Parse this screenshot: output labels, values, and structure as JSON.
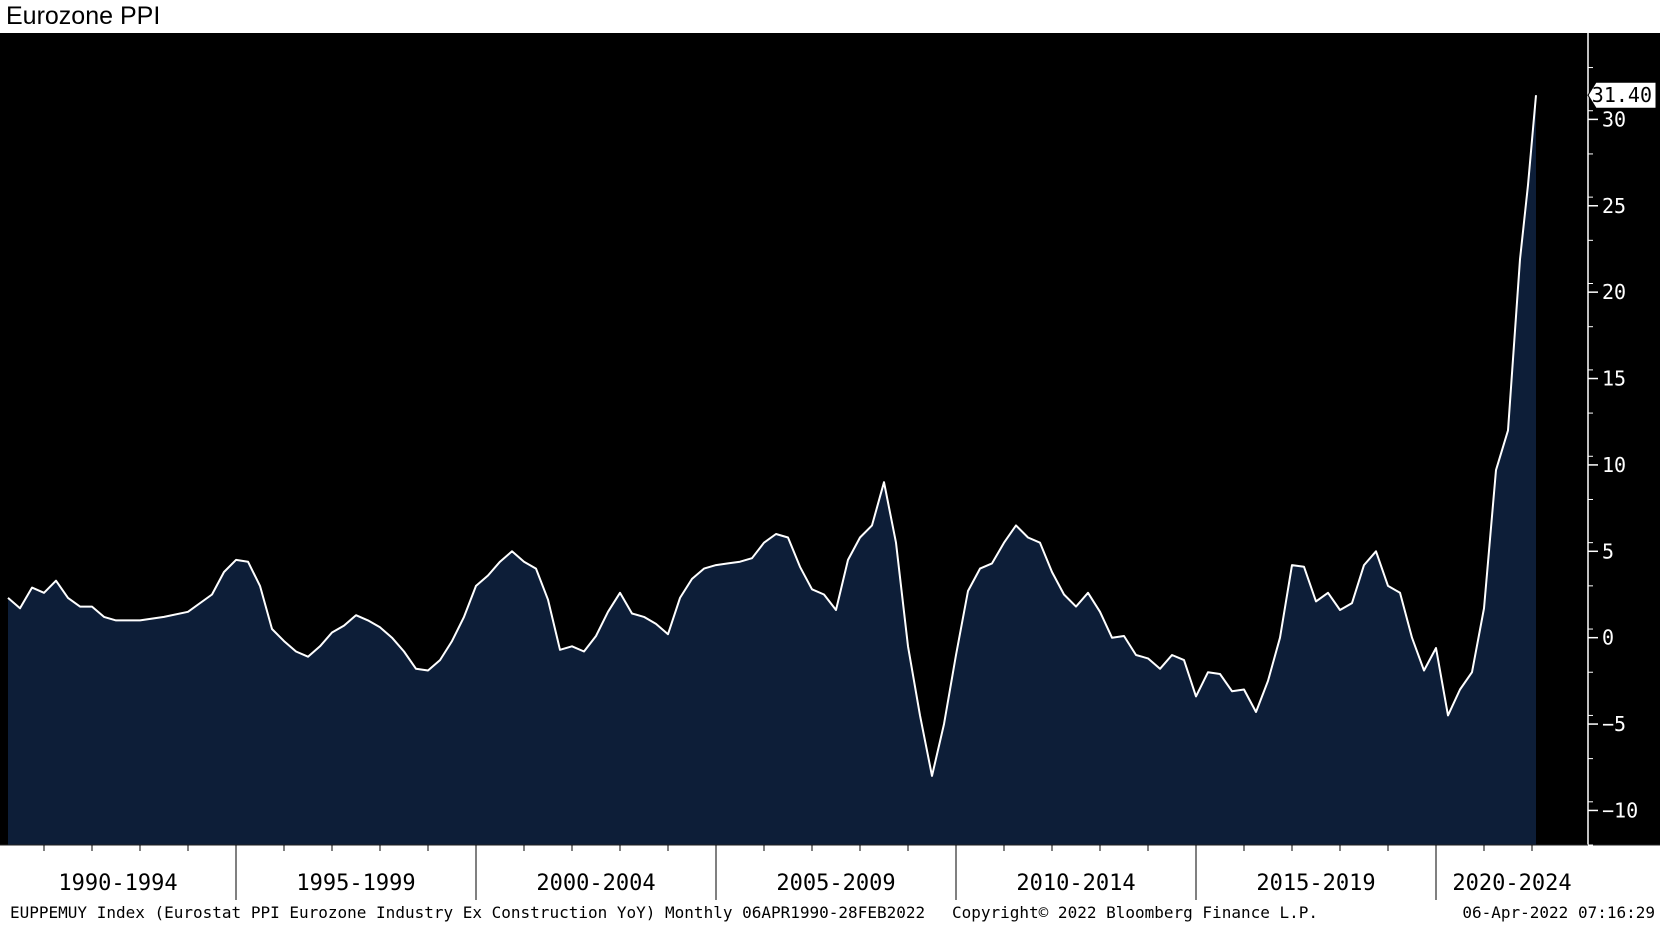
{
  "title": "Eurozone PPI",
  "footer": {
    "left": "EUPPEMUY Index (Eurostat PPI Eurozone Industry Ex Construction YoY)  Monthly 06APR1990-28FEB2022",
    "center": "Copyright© 2022 Bloomberg Finance L.P.",
    "right": "06-Apr-2022 07:16:29"
  },
  "colors": {
    "background": "#000000",
    "area_fill": "#0d1e38",
    "line": "#ffffff",
    "axis": "#ffffff"
  },
  "chart_data": {
    "type": "area",
    "ylim": [
      -12,
      35
    ],
    "yticks": [
      -10,
      -5,
      0,
      5,
      10,
      15,
      20,
      25,
      30
    ],
    "x_groups": [
      "1990-1994",
      "1995-1999",
      "2000-2004",
      "2005-2009",
      "2010-2014",
      "2015-2019",
      "2020-2024"
    ],
    "last_value_label": "31.40",
    "series": [
      {
        "points": [
          [
            "1990-04",
            2.3
          ],
          [
            "1990-07",
            1.7
          ],
          [
            "1990-10",
            2.9
          ],
          [
            "1991-01",
            2.6
          ],
          [
            "1991-04",
            3.3
          ],
          [
            "1991-07",
            2.3
          ],
          [
            "1991-10",
            1.8
          ],
          [
            "1992-01",
            1.8
          ],
          [
            "1992-04",
            1.2
          ],
          [
            "1992-07",
            1.0
          ],
          [
            "1992-10",
            1.0
          ],
          [
            "1993-01",
            1.0
          ],
          [
            "1993-07",
            1.2
          ],
          [
            "1994-01",
            1.5
          ],
          [
            "1994-07",
            2.5
          ],
          [
            "1994-10",
            3.8
          ],
          [
            "1995-01",
            4.5
          ],
          [
            "1995-04",
            4.4
          ],
          [
            "1995-07",
            3.0
          ],
          [
            "1995-10",
            0.5
          ],
          [
            "1996-01",
            -0.2
          ],
          [
            "1996-04",
            -0.8
          ],
          [
            "1996-07",
            -1.1
          ],
          [
            "1996-10",
            -0.5
          ],
          [
            "1997-01",
            0.3
          ],
          [
            "1997-04",
            0.7
          ],
          [
            "1997-07",
            1.3
          ],
          [
            "1997-10",
            1.0
          ],
          [
            "1998-01",
            0.6
          ],
          [
            "1998-04",
            0.0
          ],
          [
            "1998-07",
            -0.8
          ],
          [
            "1998-10",
            -1.8
          ],
          [
            "1999-01",
            -1.9
          ],
          [
            "1999-04",
            -1.3
          ],
          [
            "1999-07",
            -0.2
          ],
          [
            "1999-10",
            1.2
          ],
          [
            "2000-01",
            3.0
          ],
          [
            "2000-04",
            3.6
          ],
          [
            "2000-07",
            4.4
          ],
          [
            "2000-10",
            5.0
          ],
          [
            "2001-01",
            4.4
          ],
          [
            "2001-04",
            4.0
          ],
          [
            "2001-07",
            2.2
          ],
          [
            "2001-10",
            -0.7
          ],
          [
            "2002-01",
            -0.5
          ],
          [
            "2002-04",
            -0.8
          ],
          [
            "2002-07",
            0.1
          ],
          [
            "2002-10",
            1.5
          ],
          [
            "2003-01",
            2.6
          ],
          [
            "2003-04",
            1.4
          ],
          [
            "2003-07",
            1.2
          ],
          [
            "2003-10",
            0.8
          ],
          [
            "2004-01",
            0.2
          ],
          [
            "2004-04",
            2.3
          ],
          [
            "2004-07",
            3.4
          ],
          [
            "2004-10",
            4.0
          ],
          [
            "2005-01",
            4.2
          ],
          [
            "2005-04",
            4.3
          ],
          [
            "2005-07",
            4.4
          ],
          [
            "2005-10",
            4.6
          ],
          [
            "2006-01",
            5.5
          ],
          [
            "2006-04",
            6.0
          ],
          [
            "2006-07",
            5.8
          ],
          [
            "2006-10",
            4.1
          ],
          [
            "2007-01",
            2.8
          ],
          [
            "2007-04",
            2.5
          ],
          [
            "2007-07",
            1.6
          ],
          [
            "2007-10",
            4.5
          ],
          [
            "2008-01",
            5.8
          ],
          [
            "2008-04",
            6.5
          ],
          [
            "2008-07",
            9.0
          ],
          [
            "2008-10",
            5.5
          ],
          [
            "2009-01",
            -0.5
          ],
          [
            "2009-04",
            -4.5
          ],
          [
            "2009-07",
            -8.0
          ],
          [
            "2009-10",
            -5.0
          ],
          [
            "2010-01",
            -1.0
          ],
          [
            "2010-04",
            2.7
          ],
          [
            "2010-07",
            4.0
          ],
          [
            "2010-10",
            4.3
          ],
          [
            "2011-01",
            5.5
          ],
          [
            "2011-04",
            6.5
          ],
          [
            "2011-07",
            5.8
          ],
          [
            "2011-10",
            5.5
          ],
          [
            "2012-01",
            3.8
          ],
          [
            "2012-04",
            2.5
          ],
          [
            "2012-07",
            1.8
          ],
          [
            "2012-10",
            2.6
          ],
          [
            "2013-01",
            1.5
          ],
          [
            "2013-04",
            0.0
          ],
          [
            "2013-07",
            0.1
          ],
          [
            "2013-10",
            -1.0
          ],
          [
            "2014-01",
            -1.2
          ],
          [
            "2014-04",
            -1.8
          ],
          [
            "2014-07",
            -1.0
          ],
          [
            "2014-10",
            -1.3
          ],
          [
            "2015-01",
            -3.4
          ],
          [
            "2015-04",
            -2.0
          ],
          [
            "2015-07",
            -2.1
          ],
          [
            "2015-10",
            -3.1
          ],
          [
            "2016-01",
            -3.0
          ],
          [
            "2016-04",
            -4.3
          ],
          [
            "2016-07",
            -2.5
          ],
          [
            "2016-10",
            0.0
          ],
          [
            "2017-01",
            4.2
          ],
          [
            "2017-04",
            4.1
          ],
          [
            "2017-07",
            2.1
          ],
          [
            "2017-10",
            2.6
          ],
          [
            "2018-01",
            1.6
          ],
          [
            "2018-04",
            2.0
          ],
          [
            "2018-07",
            4.2
          ],
          [
            "2018-10",
            5.0
          ],
          [
            "2019-01",
            3.0
          ],
          [
            "2019-04",
            2.6
          ],
          [
            "2019-07",
            0.0
          ],
          [
            "2019-10",
            -1.9
          ],
          [
            "2020-01",
            -0.6
          ],
          [
            "2020-04",
            -4.5
          ],
          [
            "2020-07",
            -3.0
          ],
          [
            "2020-10",
            -2.0
          ],
          [
            "2021-01",
            1.7
          ],
          [
            "2021-04",
            9.7
          ],
          [
            "2021-07",
            12.0
          ],
          [
            "2021-10",
            21.9
          ],
          [
            "2021-12",
            26.2
          ],
          [
            "2022-02",
            31.4
          ]
        ]
      }
    ]
  }
}
